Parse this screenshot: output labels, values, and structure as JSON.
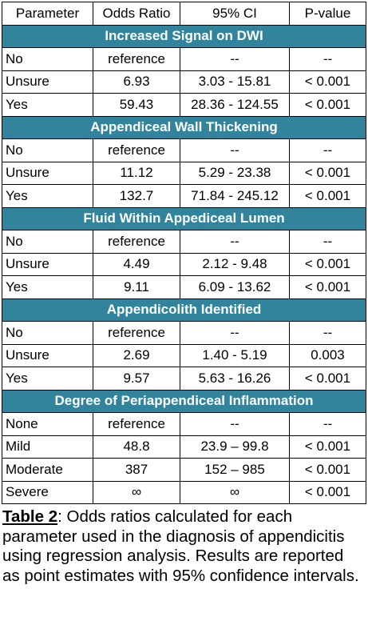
{
  "table": {
    "header": [
      "Parameter",
      "Odds Ratio",
      "95% CI",
      "P-value"
    ],
    "sections": [
      {
        "title": "Increased Signal on DWI",
        "rows": [
          [
            "No",
            "reference",
            "--",
            "--"
          ],
          [
            "Unsure",
            "6.93",
            "3.03 - 15.81",
            "< 0.001"
          ],
          [
            "Yes",
            "59.43",
            "28.36 - 124.55",
            "< 0.001"
          ]
        ]
      },
      {
        "title": "Appendiceal Wall Thickening",
        "rows": [
          [
            "No",
            "reference",
            "--",
            "--"
          ],
          [
            "Unsure",
            "11.12",
            "5.29 - 23.38",
            "< 0.001"
          ],
          [
            "Yes",
            "132.7",
            "71.84 - 245.12",
            "< 0.001"
          ]
        ]
      },
      {
        "title": "Fluid Within Appediceal Lumen",
        "rows": [
          [
            "No",
            "reference",
            "--",
            "--"
          ],
          [
            "Unsure",
            "4.49",
            "2.12 - 9.48",
            "< 0.001"
          ],
          [
            "Yes",
            "9.11",
            "6.09 - 13.62",
            "< 0.001"
          ]
        ]
      },
      {
        "title": "Appendicolith Identified",
        "rows": [
          [
            "No",
            "reference",
            "--",
            "--"
          ],
          [
            "Unsure",
            "2.69",
            "1.40 - 5.19",
            "0.003"
          ],
          [
            "Yes",
            "9.57",
            "5.63 - 16.26",
            "< 0.001"
          ]
        ]
      },
      {
        "title": "Degree of Periappendiceal Inflammation",
        "rows": [
          [
            "None",
            "reference",
            "--",
            "--"
          ],
          [
            "Mild",
            "48.8",
            "23.9 – 99.8",
            "< 0.001"
          ],
          [
            "Moderate",
            "387",
            "152 – 985",
            "< 0.001"
          ],
          [
            "Severe",
            "∞",
            "∞",
            "< 0.001"
          ]
        ]
      }
    ]
  },
  "caption": {
    "label": "Table 2",
    "text": ": Odds ratios calculated for each parameter used in the diagnosis of appendicitis using regression analysis. Results are reported as point estimates with 95% confidence intervals."
  }
}
